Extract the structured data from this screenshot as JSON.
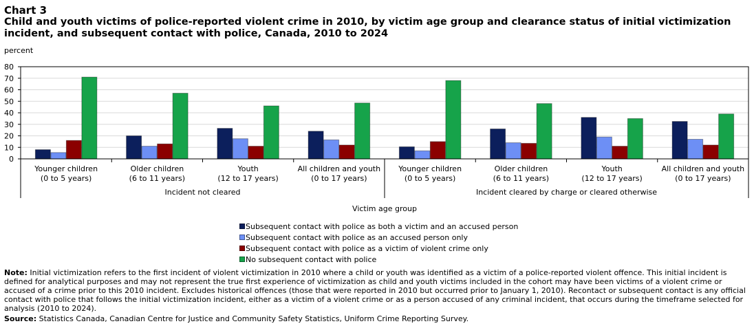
{
  "header": {
    "chart_label": "Chart 3",
    "title": "Child and youth victims of police-reported violent crime in 2010, by victim age group and clearance status of initial victimization incident, and subsequent contact with police, Canada, 2010 to 2024",
    "unit_label": "percent"
  },
  "chart_data": {
    "type": "bar",
    "title": "Child and youth victims of police-reported violent crime in 2010, by victim age group and clearance status of initial victimization incident, and subsequent contact with police, Canada, 2010 to 2024",
    "ylabel": "percent",
    "xlabel": "Victim age group",
    "ylim": [
      0,
      80
    ],
    "yticks": [
      0,
      10,
      20,
      30,
      40,
      50,
      60,
      70,
      80
    ],
    "grid": true,
    "legend_position": "bottom",
    "groups": [
      {
        "label": "Incident not cleared",
        "category_indices": [
          0,
          1,
          2,
          3
        ]
      },
      {
        "label": "Incident cleared by charge or cleared otherwise",
        "category_indices": [
          4,
          5,
          6,
          7
        ]
      }
    ],
    "categories": [
      {
        "line1": "Younger children",
        "line2": "(0 to 5 years)"
      },
      {
        "line1": "Older children",
        "line2": "(6 to 11 years)"
      },
      {
        "line1": "Youth",
        "line2": "(12 to 17 years)"
      },
      {
        "line1": "All children and youth",
        "line2": "(0 to 17 years)"
      },
      {
        "line1": "Younger children",
        "line2": "(0 to 5 years)"
      },
      {
        "line1": "Older children",
        "line2": "(6 to 11 years)"
      },
      {
        "line1": "Youth",
        "line2": "(12 to 17 years)"
      },
      {
        "line1": "All children and youth",
        "line2": "(0 to 17 years)"
      }
    ],
    "series": [
      {
        "name": "Subsequent contact with police as both a victim and an accused person",
        "color": "#0c1f5c",
        "values": [
          8,
          20,
          26.5,
          24,
          10.5,
          26,
          36,
          32.5
        ]
      },
      {
        "name": "Subsequent contact with police as an accused person only",
        "color": "#6d8ff5",
        "values": [
          5.5,
          11,
          17.5,
          16.5,
          7,
          14,
          19,
          17
        ]
      },
      {
        "name": "Subsequent contact with police as a victim of violent crime only",
        "color": "#8b0000",
        "values": [
          16,
          13,
          11,
          12,
          15,
          13.5,
          11,
          12
        ]
      },
      {
        "name": "No subsequent contact with police",
        "color": "#16a34a",
        "values": [
          71,
          57,
          46,
          48.5,
          68,
          48,
          35,
          39
        ]
      }
    ]
  },
  "footer": {
    "note_label": "Note:",
    "note_text": "Initial victimization refers to the first incident of violent victimization in 2010 where a child or youth was identified as a victim of a police-reported violent offence. This initial incident is defined for analytical purposes and may not represent the true first experience of victimization as child and youth victims included in the cohort may have been victims of a violent crime or accused of a crime prior to this 2010 incident. Excludes historical offences (those that were reported in 2010 but occurred prior to January 1, 2010). Recontact or subsequent contact is any official contact with police that follows the initial victimization incident, either as a victim of a violent crime or as a person accused of any criminal incident, that occurs during the timeframe selected for analysis (2010 to 2024).",
    "source_label": "Source:",
    "source_text": "Statistics Canada, Canadian Centre for Justice and Community Safety Statistics, Uniform Crime Reporting Survey."
  }
}
